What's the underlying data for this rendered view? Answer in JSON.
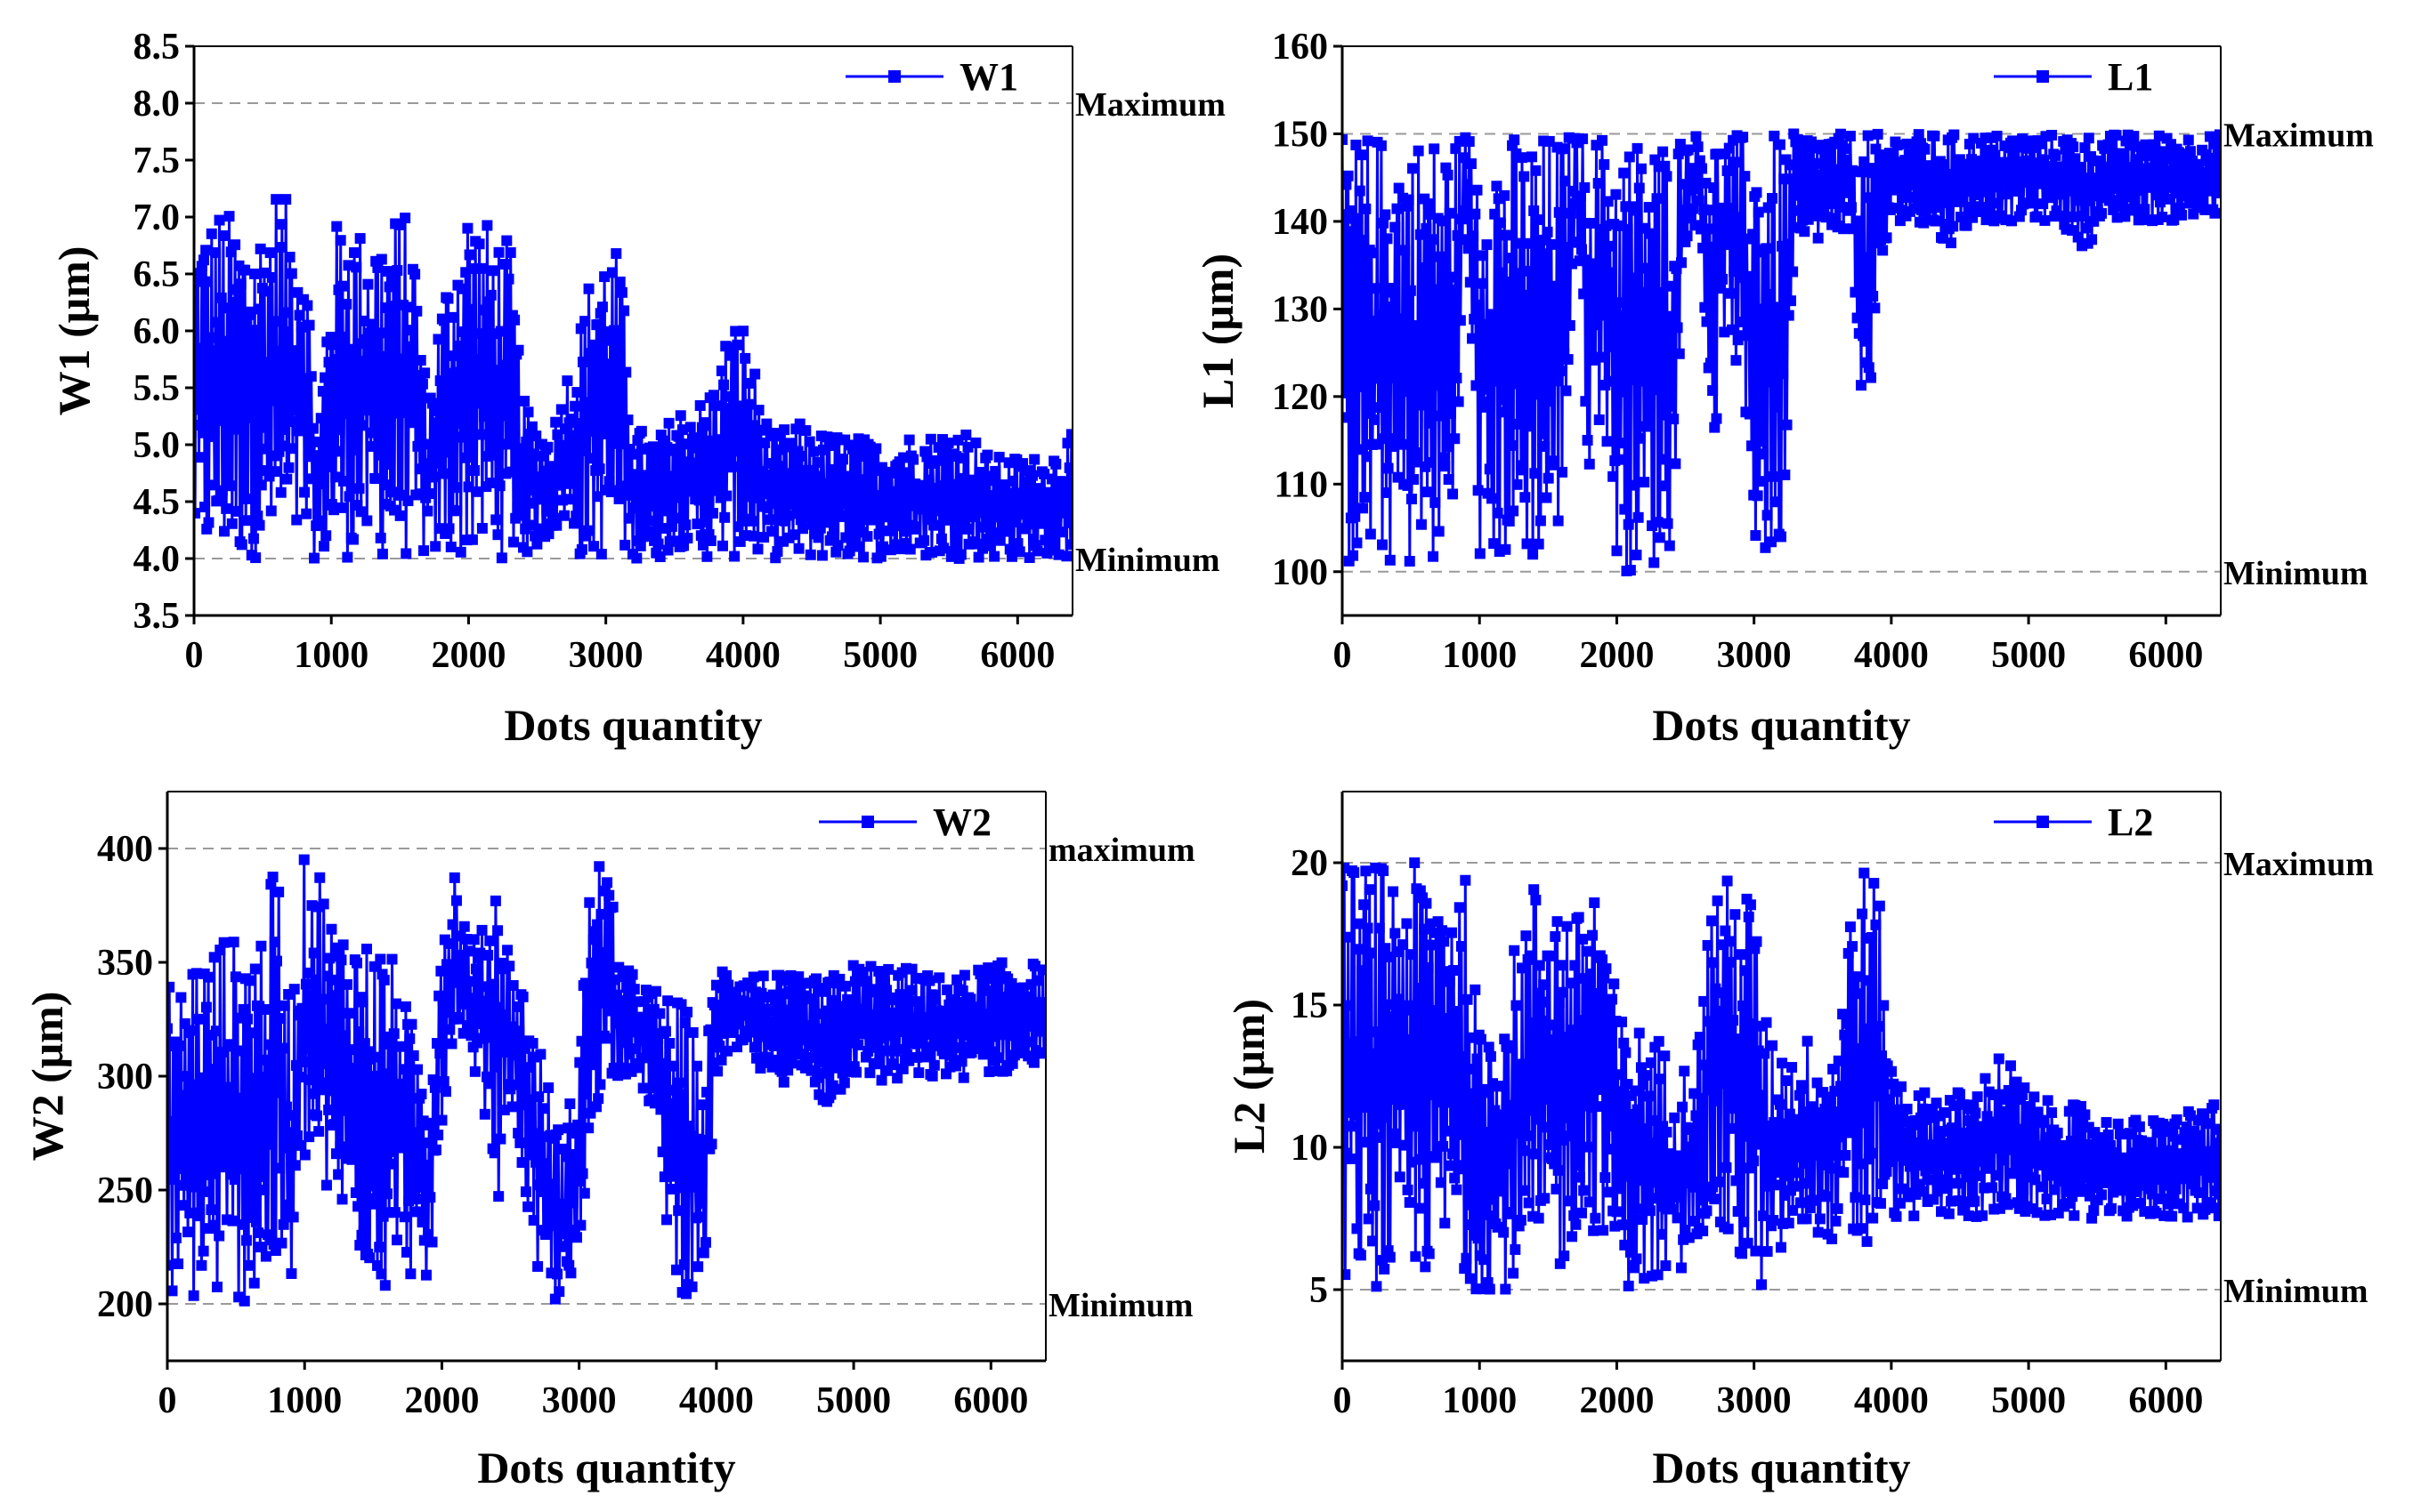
{
  "colors": {
    "series": "#0000ff",
    "reference_line": "#9a9a9a",
    "axis": "#000000"
  },
  "chart_data": [
    {
      "type": "line",
      "markers": "square",
      "xlabel": "Dots quantity",
      "ylabel": "W1 (μm)",
      "xlim": [
        0,
        6400
      ],
      "ylim": [
        3.5,
        8.5
      ],
      "xticks": [
        "0",
        "1000",
        "2000",
        "3000",
        "4000",
        "5000",
        "6000"
      ],
      "yticks": [
        "3.5",
        "4.0",
        "4.5",
        "5.0",
        "5.5",
        "6.0",
        "6.5",
        "7.0",
        "7.5",
        "8.0",
        "8.5"
      ],
      "legend": {
        "label": "W1",
        "position": "top-right"
      },
      "reference_lines": [
        {
          "label": "Maximum",
          "y": 8.0
        },
        {
          "label": "Minimum",
          "y": 4.0
        }
      ],
      "series": [
        {
          "name": "W1",
          "x": [
            0,
            100,
            200,
            300,
            400,
            500,
            600,
            700,
            800,
            900,
            1000,
            1100,
            1200,
            1300,
            1400,
            1500,
            1600,
            1700,
            1800,
            1900,
            2000,
            2100,
            2200,
            2300,
            2400,
            2500,
            2600,
            2700,
            2800,
            2900,
            3000,
            3100,
            3200,
            3300,
            3400,
            3500,
            3600,
            3700,
            3800,
            3900,
            4000,
            4200,
            4400,
            4600,
            4800,
            5000,
            5200,
            5400,
            5600,
            5800,
            6000,
            6200,
            6400
          ],
          "y_max": [
            6.9,
            7.0,
            7.1,
            7.0,
            6.9,
            7.0,
            7.3,
            7.1,
            7.1,
            5.0,
            6.8,
            7.2,
            6.9,
            7.0,
            6.9,
            7.1,
            6.9,
            5.4,
            6.3,
            6.8,
            7.2,
            7.0,
            6.9,
            6.8,
            5.4,
            5.2,
            5.1,
            5.6,
            6.0,
            6.6,
            6.8,
            6.7,
            5.2,
            5.1,
            5.1,
            5.3,
            5.4,
            5.4,
            5.6,
            6.1,
            6.1,
            5.1,
            5.2,
            5.1,
            5.1,
            5.0,
            5.1,
            5.1,
            5.2,
            4.9,
            4.9,
            4.9,
            5.1
          ],
          "y_min": [
            4.0,
            4.0,
            4.0,
            4.0,
            4.0,
            4.0,
            4.0,
            4.0,
            4.0,
            4.0,
            4.0,
            4.0,
            4.0,
            4.0,
            4.0,
            4.0,
            4.0,
            4.0,
            4.0,
            4.0,
            4.0,
            4.0,
            4.0,
            4.0,
            4.0,
            4.1,
            4.2,
            4.3,
            4.0,
            4.0,
            4.0,
            4.0,
            4.0,
            4.0,
            4.0,
            4.1,
            4.1,
            4.0,
            4.0,
            4.0,
            4.0,
            4.0,
            4.0,
            4.0,
            4.0,
            4.0,
            4.0,
            4.0,
            4.0,
            4.0,
            4.0,
            4.0,
            4.0
          ]
        }
      ]
    },
    {
      "type": "line",
      "markers": "square",
      "xlabel": "Dots quantity",
      "ylabel": "L1 (μm)",
      "xlim": [
        0,
        6400
      ],
      "ylim": [
        95,
        160
      ],
      "xticks": [
        "0",
        "1000",
        "2000",
        "3000",
        "4000",
        "5000",
        "6000"
      ],
      "yticks": [
        "100",
        "110",
        "120",
        "130",
        "140",
        "150",
        "160"
      ],
      "legend": {
        "label": "L1",
        "position": "top-right"
      },
      "reference_lines": [
        {
          "label": "Maximum",
          "y": 150
        },
        {
          "label": "Minimum",
          "y": 100
        }
      ],
      "series": [
        {
          "name": "L1",
          "x": [
            0,
            100,
            200,
            300,
            400,
            500,
            600,
            700,
            800,
            900,
            1000,
            1100,
            1200,
            1300,
            1400,
            1500,
            1600,
            1700,
            1800,
            1900,
            2000,
            2100,
            2200,
            2300,
            2400,
            2500,
            2600,
            2700,
            2800,
            2900,
            3000,
            3100,
            3200,
            3300,
            3400,
            3500,
            3600,
            3700,
            3800,
            3900,
            4000,
            4200,
            4400,
            4600,
            4800,
            5000,
            5200,
            5400,
            5600,
            5800,
            6000,
            6200,
            6400
          ],
          "y_max": [
            150,
            150,
            150,
            150,
            150,
            150,
            150,
            150,
            150,
            150,
            150,
            150,
            150,
            150,
            150,
            150,
            150,
            150,
            150,
            150,
            150,
            150,
            150,
            150,
            150,
            150,
            150,
            150,
            150,
            150,
            150,
            150,
            150,
            150,
            150,
            150,
            150,
            150,
            150,
            150,
            150,
            150,
            150,
            150,
            150,
            150,
            150,
            150,
            150,
            150,
            150,
            150,
            150
          ],
          "y_min": [
            100,
            100,
            100,
            101,
            100,
            100,
            100,
            100,
            101,
            140,
            100,
            100,
            101,
            100,
            101,
            102,
            105,
            140,
            110,
            120,
            100,
            100,
            101,
            100,
            102,
            138,
            140,
            112,
            130,
            120,
            102,
            100,
            100,
            140,
            138,
            138,
            138,
            140,
            112,
            130,
            140,
            140,
            137,
            140,
            140,
            140,
            140,
            137,
            140,
            140,
            140,
            140,
            140
          ]
        }
      ]
    },
    {
      "type": "line",
      "markers": "square",
      "xlabel": "Dots quantity",
      "ylabel": "W2 (μm)",
      "xlim": [
        0,
        6400
      ],
      "ylim": [
        175,
        425
      ],
      "xticks": [
        "0",
        "1000",
        "2000",
        "3000",
        "4000",
        "5000",
        "6000"
      ],
      "yticks": [
        "200",
        "250",
        "300",
        "350",
        "400"
      ],
      "legend": {
        "label": "W2",
        "position": "top-right"
      },
      "reference_lines": [
        {
          "label": "maximum",
          "y": 400
        },
        {
          "label": "Minimum",
          "y": 200
        }
      ],
      "series": [
        {
          "name": "W2",
          "x": [
            0,
            100,
            200,
            300,
            400,
            500,
            600,
            700,
            800,
            900,
            1000,
            1100,
            1200,
            1300,
            1400,
            1500,
            1600,
            1700,
            1800,
            1900,
            2000,
            2100,
            2200,
            2300,
            2400,
            2500,
            2600,
            2700,
            2800,
            2900,
            3000,
            3100,
            3200,
            3300,
            3400,
            3500,
            3600,
            3700,
            3800,
            3900,
            4000,
            4200,
            4400,
            4600,
            4800,
            5000,
            5200,
            5400,
            5600,
            5800,
            6000,
            6200,
            6400
          ],
          "y_max": [
            345,
            340,
            360,
            355,
            365,
            360,
            365,
            370,
            398,
            330,
            398,
            397,
            370,
            368,
            365,
            360,
            360,
            340,
            320,
            300,
            370,
            398,
            360,
            365,
            396,
            350,
            340,
            320,
            290,
            270,
            330,
            398,
            396,
            350,
            345,
            340,
            338,
            335,
            330,
            300,
            350,
            348,
            345,
            344,
            343,
            350,
            350,
            348,
            344,
            345,
            350,
            350,
            350
          ],
          "y_min": [
            200,
            200,
            200,
            200,
            200,
            200,
            200,
            200,
            210,
            200,
            260,
            250,
            240,
            230,
            220,
            210,
            205,
            230,
            205,
            200,
            280,
            300,
            300,
            290,
            240,
            290,
            250,
            205,
            200,
            200,
            200,
            280,
            300,
            300,
            300,
            290,
            250,
            210,
            200,
            200,
            300,
            310,
            295,
            300,
            285,
            300,
            296,
            297,
            298,
            299,
            300,
            302,
            305
          ]
        }
      ]
    },
    {
      "type": "line",
      "markers": "square",
      "xlabel": "Dots quantity",
      "ylabel": "L2 (μm)",
      "xlim": [
        0,
        6400
      ],
      "ylim": [
        2.5,
        22.5
      ],
      "xticks": [
        "0",
        "1000",
        "2000",
        "3000",
        "4000",
        "5000",
        "6000"
      ],
      "yticks": [
        "5",
        "10",
        "15",
        "20"
      ],
      "legend": {
        "label": "L2",
        "position": "top-right"
      },
      "reference_lines": [
        {
          "label": "Maximum",
          "y": 20
        },
        {
          "label": "Minimum",
          "y": 5
        }
      ],
      "series": [
        {
          "name": "L2",
          "x": [
            0,
            100,
            200,
            300,
            400,
            500,
            600,
            700,
            800,
            900,
            1000,
            1100,
            1200,
            1300,
            1400,
            1500,
            1600,
            1700,
            1800,
            1900,
            2000,
            2100,
            2200,
            2300,
            2400,
            2500,
            2600,
            2700,
            2800,
            2900,
            3000,
            3100,
            3200,
            3300,
            3400,
            3500,
            3600,
            3700,
            3800,
            3900,
            4000,
            4200,
            4400,
            4600,
            4800,
            5000,
            5200,
            5400,
            5600,
            5800,
            6000,
            6200,
            6400
          ],
          "y_max": [
            20,
            20,
            20,
            20,
            20,
            20,
            20,
            20,
            20,
            19.5,
            14,
            15,
            16,
            18,
            19.5,
            20,
            19,
            18,
            20,
            19,
            15,
            14,
            14.5,
            14,
            13,
            13,
            14,
            20,
            19.5,
            19.5,
            19,
            14,
            14,
            13,
            14,
            13,
            14,
            19,
            20,
            19.5,
            13,
            12,
            12,
            12,
            13.5,
            12,
            11.5,
            11.5,
            11,
            11,
            11,
            11.5,
            11.5
          ],
          "y_min": [
            5.5,
            5.5,
            5,
            5,
            5,
            5,
            5.5,
            5.5,
            6,
            5,
            5,
            5,
            5,
            5,
            5,
            5,
            5.5,
            7,
            7,
            7,
            5.5,
            5,
            5,
            5,
            5,
            5.5,
            7,
            7,
            6,
            5.5,
            5,
            5,
            6,
            7,
            7,
            7,
            6.5,
            5.5,
            5.5,
            7,
            7.5,
            7.5,
            7.5,
            7.5,
            7.5,
            7.5,
            7.5,
            7.5,
            7.5,
            7.5,
            7.5,
            7.5,
            7.5
          ]
        }
      ]
    }
  ]
}
